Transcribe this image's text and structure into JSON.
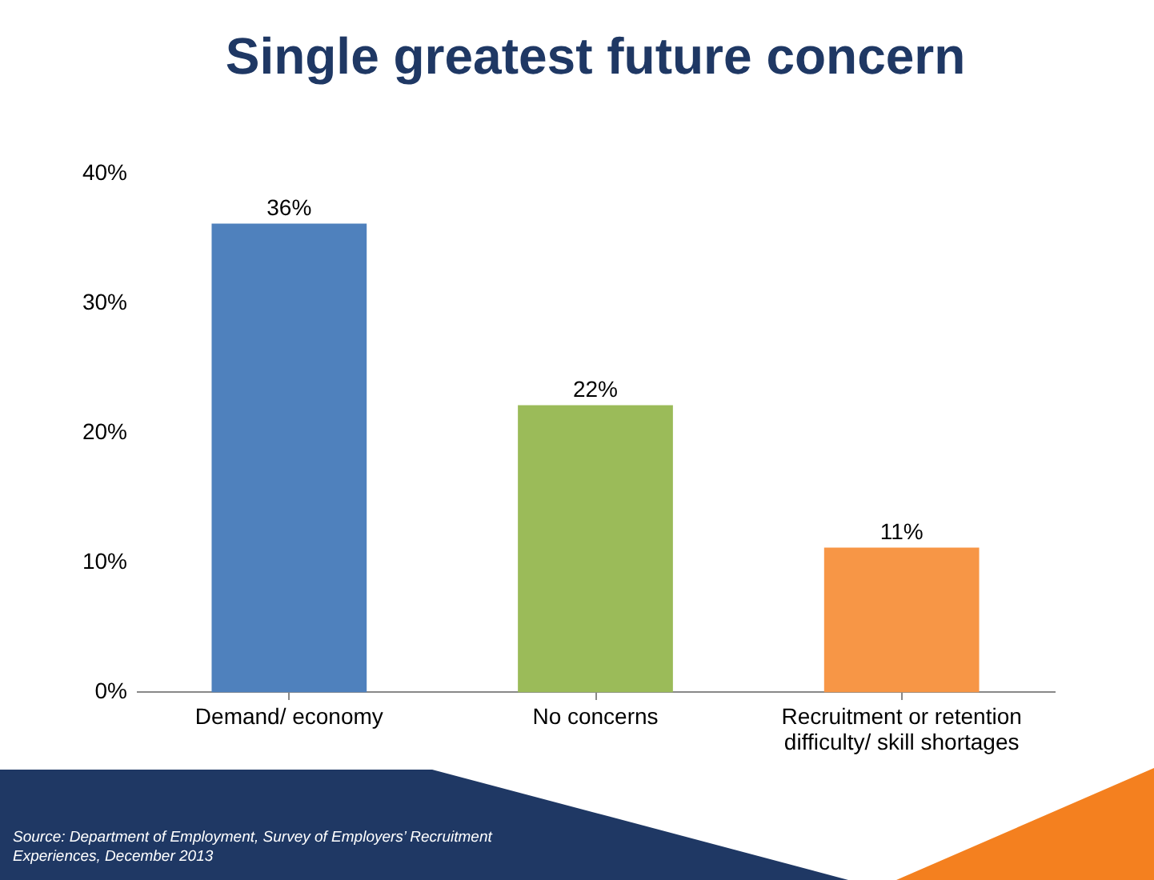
{
  "chart_data": {
    "type": "bar",
    "title": "Single greatest future concern",
    "categories": [
      "Demand/ economy",
      "No concerns",
      "Recruitment or retention difficulty/ skill shortages"
    ],
    "values": [
      36,
      22,
      11
    ],
    "colors": [
      "#4f81bd",
      "#9bbb59",
      "#f79646"
    ],
    "value_labels": [
      "36%",
      "22%",
      "11%"
    ],
    "ylim": [
      0,
      40
    ],
    "yticks": [
      {
        "value": 0,
        "label": "0%"
      },
      {
        "value": 10,
        "label": "10%"
      },
      {
        "value": 20,
        "label": "20%"
      },
      {
        "value": 30,
        "label": "30%"
      },
      {
        "value": 40,
        "label": "40%"
      }
    ],
    "grid": false,
    "annotations": [
      "Source: Department of Employment, Survey of Employers’ Recruitment Experiences, December 2013"
    ]
  }
}
